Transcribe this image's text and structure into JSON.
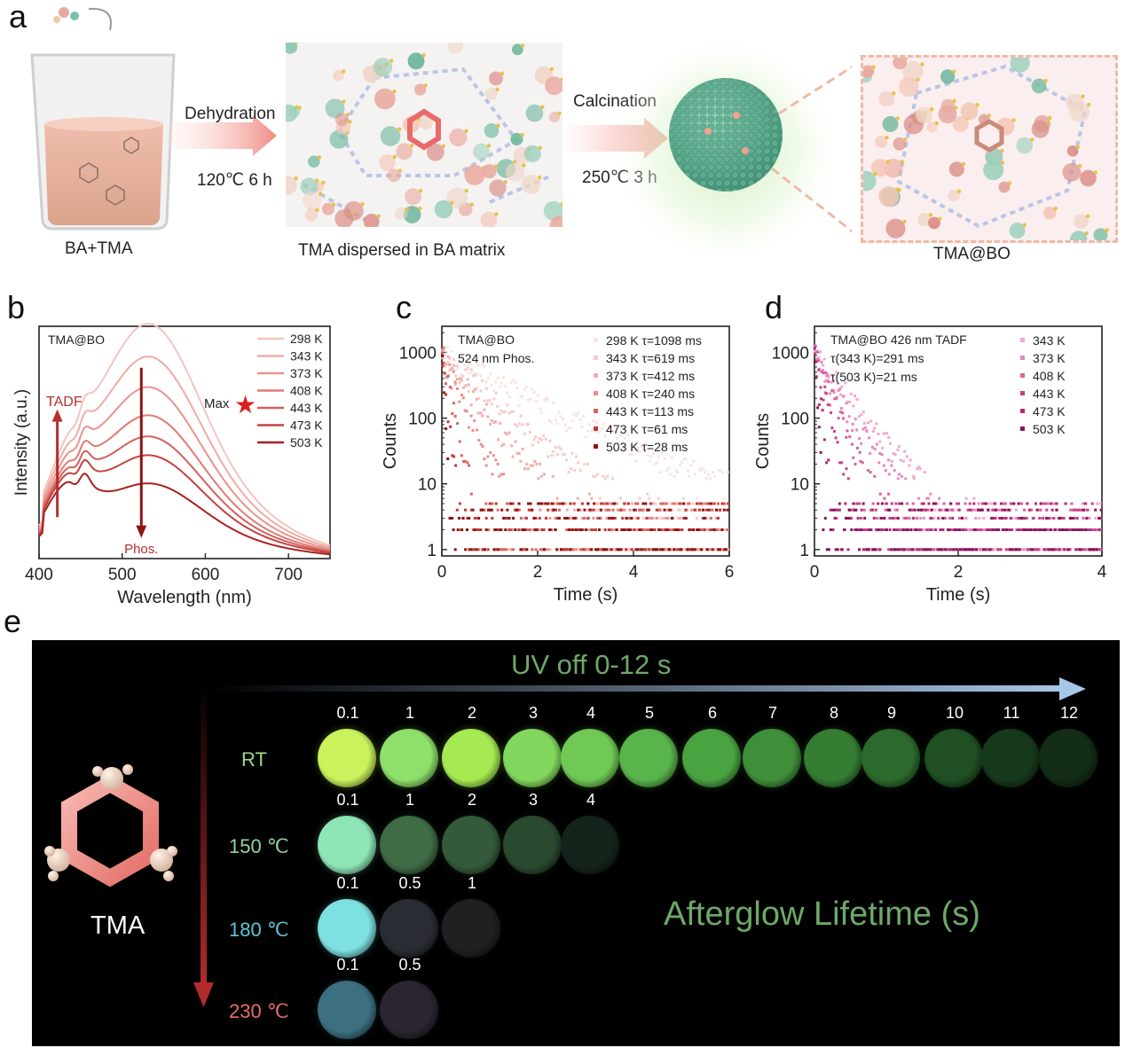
{
  "panel_a": {
    "letter": "a",
    "step1_label": "BA+TMA",
    "arrow1_top": "Dehydration",
    "arrow1_bottom": "120℃  6 h",
    "step2_label": "TMA dispersed in BA matrix",
    "arrow2_top": "Calcination",
    "arrow2_bottom": "250℃  3 h",
    "step3_label": "TMA@BO"
  },
  "chart_data": [
    {
      "panel": "b",
      "type": "line",
      "xlabel": "Wavelength (nm)",
      "ylabel": "Intensity (a.u.)",
      "xlim": [
        400,
        750
      ],
      "xticks": [
        400,
        500,
        600,
        700
      ],
      "inset_label": "TMA@BO",
      "annotations": [
        "TADF",
        "Phos.",
        "Max"
      ],
      "series": [
        {
          "name": "298 K",
          "color": "#f4c4bf",
          "peak": 1.0
        },
        {
          "name": "343 K",
          "color": "#efaba6",
          "peak": 0.86
        },
        {
          "name": "373 K",
          "color": "#e9938d",
          "peak": 0.73
        },
        {
          "name": "408 K",
          "color": "#e07a74",
          "peak": 0.61
        },
        {
          "name": "443 K",
          "color": "#d3605b",
          "peak": 0.52
        },
        {
          "name": "473 K",
          "color": "#c24340",
          "peak": 0.44
        },
        {
          "name": "503 K",
          "color": "#a82220",
          "peak": 0.32
        }
      ]
    },
    {
      "panel": "c",
      "type": "scatter",
      "xlabel": "Time (s)",
      "ylabel": "Counts",
      "xlim": [
        0,
        6
      ],
      "ylim": [
        0.8,
        2500
      ],
      "yscale": "log",
      "xticks": [
        0,
        2,
        4,
        6
      ],
      "yticks": [
        "1",
        "10",
        "100",
        "1000"
      ],
      "inset_label": [
        "TMA@BO",
        "524 nm Phos."
      ],
      "series": [
        {
          "name": "298 K τ=1098 ms",
          "tau": 1.098,
          "color": "#fbe3e1"
        },
        {
          "name": "343 K τ=619 ms",
          "tau": 0.619,
          "color": "#f7cbc7"
        },
        {
          "name": "373 K τ=412 ms",
          "tau": 0.412,
          "color": "#f1aea9"
        },
        {
          "name": "408 K τ=240 ms",
          "tau": 0.24,
          "color": "#e8908a"
        },
        {
          "name": "443 K τ=113 ms",
          "tau": 0.113,
          "color": "#d9655f"
        },
        {
          "name": "473 K τ=61 ms",
          "tau": 0.061,
          "color": "#bf3b37"
        },
        {
          "name": "503 K τ=28 ms",
          "tau": 0.028,
          "color": "#8e1412"
        }
      ]
    },
    {
      "panel": "d",
      "type": "scatter",
      "xlabel": "Time (s)",
      "ylabel": "Counts",
      "xlim": [
        0,
        4
      ],
      "ylim": [
        0.8,
        2500
      ],
      "yscale": "log",
      "xticks": [
        0,
        2,
        4
      ],
      "yticks": [
        "1",
        "10",
        "100",
        "1000"
      ],
      "inset_label": [
        "TMA@BO 426 nm TADF",
        "τ(343 K)=291 ms",
        "τ(503 K)=21 ms"
      ],
      "series": [
        {
          "name": "343 K",
          "tau": 0.291,
          "color": "#f2a8cf"
        },
        {
          "name": "373 K",
          "tau": 0.22,
          "color": "#e887bd"
        },
        {
          "name": "408 K",
          "tau": 0.15,
          "color": "#d9619f"
        },
        {
          "name": "443 K",
          "tau": 0.09,
          "color": "#c8428a"
        },
        {
          "name": "473 K",
          "tau": 0.045,
          "color": "#b02b77"
        },
        {
          "name": "503 K",
          "tau": 0.021,
          "color": "#8a1560"
        }
      ]
    }
  ],
  "panel_e": {
    "letter": "e",
    "header": "UV off   0-12 s",
    "molecule_label": "TMA",
    "center_label": "Afterglow Lifetime (s)",
    "rows": [
      {
        "label": "RT",
        "label_color": "#9ed88a",
        "times": [
          "0.1",
          "1",
          "2",
          "3",
          "4",
          "5",
          "6",
          "7",
          "8",
          "9",
          "10",
          "11",
          "12"
        ],
        "colors": [
          "#c9f25c",
          "#8ee06a",
          "#a6ea52",
          "#82d85e",
          "#6fc954",
          "#58b44b",
          "#4aa341",
          "#3f8f3a",
          "#357d33",
          "#2b6a2c",
          "#1f4f22",
          "#17391b",
          "#122c16"
        ]
      },
      {
        "label": "150 ℃",
        "label_color": "#8fd6a8",
        "times": [
          "0.1",
          "1",
          "2",
          "3",
          "4"
        ],
        "colors": [
          "#8ee5b6",
          "#3f6b45",
          "#355a3a",
          "#2a4a2f",
          "#14241a"
        ]
      },
      {
        "label": "180 ℃",
        "label_color": "#5ec6d6",
        "times": [
          "0.1",
          "0.5",
          "1"
        ],
        "colors": [
          "#7ee0e0",
          "#2a2c33",
          "#1e2022"
        ]
      },
      {
        "label": "230 ℃",
        "label_color": "#e86a6a",
        "times": [
          "0.1",
          "0.5"
        ],
        "colors": [
          "#3c6f80",
          "#2a2530"
        ]
      }
    ]
  }
}
